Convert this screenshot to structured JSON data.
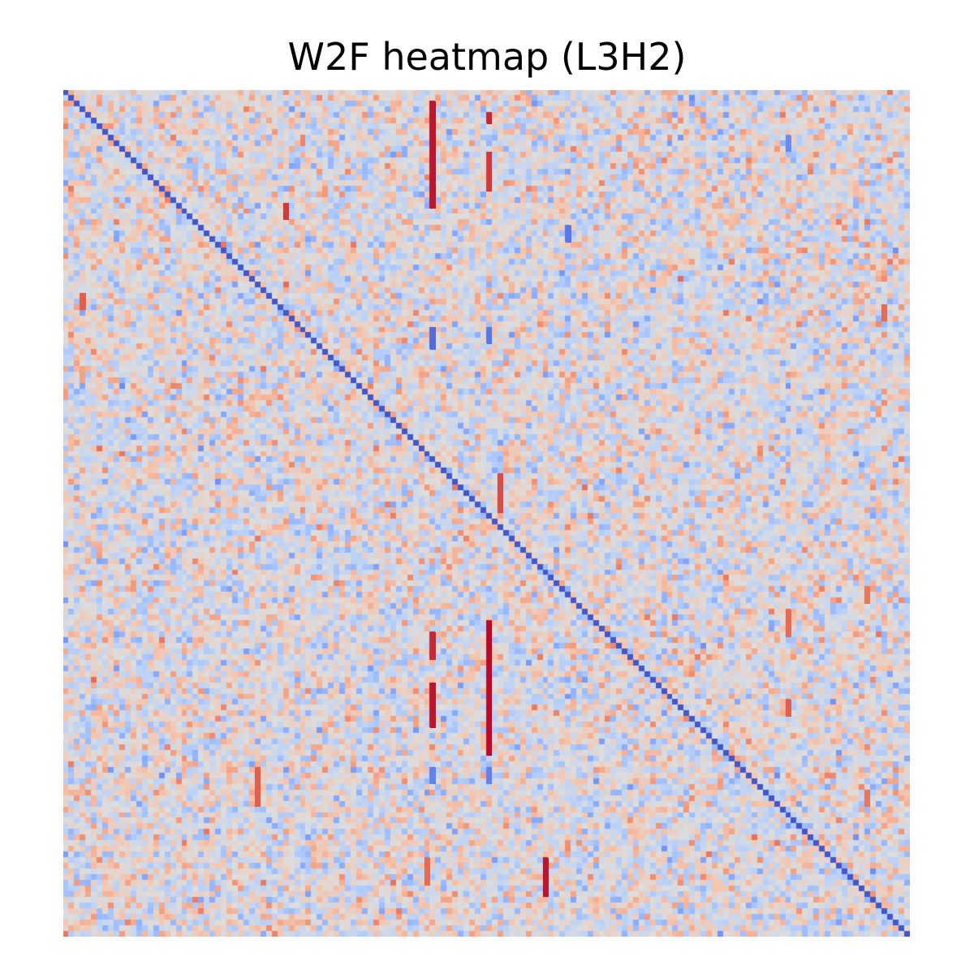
{
  "chart_data": {
    "type": "heatmap",
    "title": "W2F heatmap (L3H2)",
    "xlabel": "",
    "ylabel": "",
    "rows": 150,
    "cols": 150,
    "colormap": "coolwarm",
    "colors": {
      "low": "#3b4cc0",
      "mid": "#dddddd",
      "high": "#b40426"
    },
    "value_range": [
      -1,
      1
    ],
    "background_distribution": "random noise in approx [-0.45, 0.45]",
    "diagonal": {
      "description": "main diagonal strongly negative",
      "value": -0.95
    },
    "notable_cells": [
      {
        "col": 65,
        "row_start": 2,
        "row_end": 20,
        "value": 0.95
      },
      {
        "col": 75,
        "row_start": 4,
        "row_end": 5,
        "value": 0.9
      },
      {
        "col": 75,
        "row_start": 11,
        "row_end": 17,
        "value": 0.85
      },
      {
        "col": 39,
        "row_start": 20,
        "row_end": 22,
        "value": 0.85
      },
      {
        "col": 3,
        "row_start": 36,
        "row_end": 38,
        "value": 0.75
      },
      {
        "col": 65,
        "row_start": 42,
        "row_end": 45,
        "value": -0.85
      },
      {
        "col": 75,
        "row_start": 42,
        "row_end": 44,
        "value": -0.8
      },
      {
        "col": 77,
        "row_start": 68,
        "row_end": 74,
        "value": 0.8
      },
      {
        "col": 75,
        "row_start": 94,
        "row_end": 117,
        "value": 0.98
      },
      {
        "col": 65,
        "row_start": 96,
        "row_end": 100,
        "value": 0.9
      },
      {
        "col": 65,
        "row_start": 105,
        "row_end": 112,
        "value": 0.95
      },
      {
        "col": 34,
        "row_start": 120,
        "row_end": 126,
        "value": 0.75
      },
      {
        "col": 85,
        "row_start": 136,
        "row_end": 142,
        "value": 0.95
      },
      {
        "col": 64,
        "row_start": 136,
        "row_end": 140,
        "value": 0.7
      },
      {
        "col": 128,
        "row_start": 92,
        "row_end": 96,
        "value": 0.7
      },
      {
        "col": 128,
        "row_start": 108,
        "row_end": 110,
        "value": 0.75
      },
      {
        "col": 145,
        "row_start": 38,
        "row_end": 40,
        "value": 0.7
      },
      {
        "col": 142,
        "row_start": 88,
        "row_end": 90,
        "value": 0.65
      },
      {
        "col": 142,
        "row_start": 124,
        "row_end": 126,
        "value": 0.65
      },
      {
        "col": 89,
        "row_start": 24,
        "row_end": 26,
        "value": -0.8
      },
      {
        "col": 128,
        "row_start": 8,
        "row_end": 10,
        "value": -0.7
      },
      {
        "col": 65,
        "row_start": 120,
        "row_end": 122,
        "value": -0.75
      },
      {
        "col": 75,
        "row_start": 120,
        "row_end": 122,
        "value": -0.75
      }
    ]
  }
}
